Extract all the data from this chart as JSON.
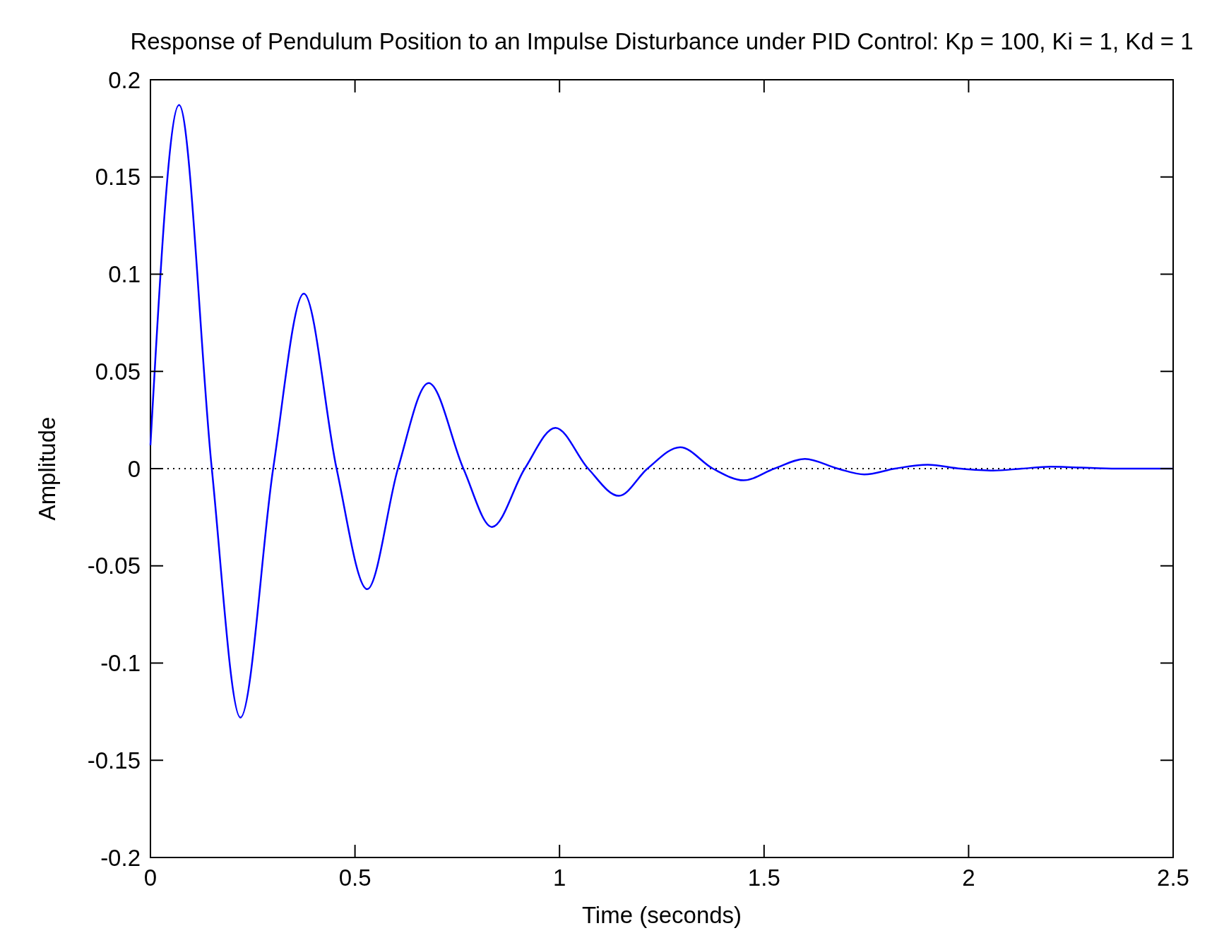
{
  "chart_data": {
    "type": "line",
    "title": "Response of Pendulum Position to an Impulse Disturbance under PID Control: Kp = 100, Ki = 1, Kd = 1",
    "xlabel": "Time (seconds)",
    "ylabel": "Amplitude",
    "x": [
      0,
      0.07,
      0.15,
      0.22,
      0.3,
      0.375,
      0.455,
      0.53,
      0.605,
      0.68,
      0.765,
      0.835,
      0.915,
      0.99,
      1.07,
      1.145,
      1.215,
      1.295,
      1.375,
      1.45,
      1.525,
      1.6,
      1.68,
      1.745,
      1.82,
      1.9,
      1.98,
      2.06,
      2.13,
      2.2,
      2.35,
      2.5
    ],
    "series": [
      {
        "color": "#0000ff",
        "values": [
          0.012,
          0.187,
          0,
          -0.128,
          0,
          0.09,
          0,
          -0.062,
          0,
          0.044,
          0,
          -0.03,
          0,
          0.021,
          0,
          -0.014,
          0,
          0.011,
          0,
          -0.006,
          0,
          0.005,
          0,
          -0.003,
          0,
          0.002,
          0,
          -0.001,
          0,
          0.001,
          0,
          0
        ]
      }
    ],
    "xlim": [
      0,
      2.5
    ],
    "ylim": [
      -0.2,
      0.2
    ],
    "xticks": [
      0,
      0.5,
      1,
      1.5,
      2,
      2.5
    ],
    "yticks": [
      -0.2,
      -0.15,
      -0.1,
      -0.05,
      0,
      0.05,
      0.1,
      0.15,
      0.2
    ],
    "ref_lines": [
      {
        "axis": "y",
        "value": 0,
        "color": "#000000",
        "line_style": "dotted"
      }
    ],
    "grid": false,
    "marker": "none",
    "line_style": "solid"
  }
}
